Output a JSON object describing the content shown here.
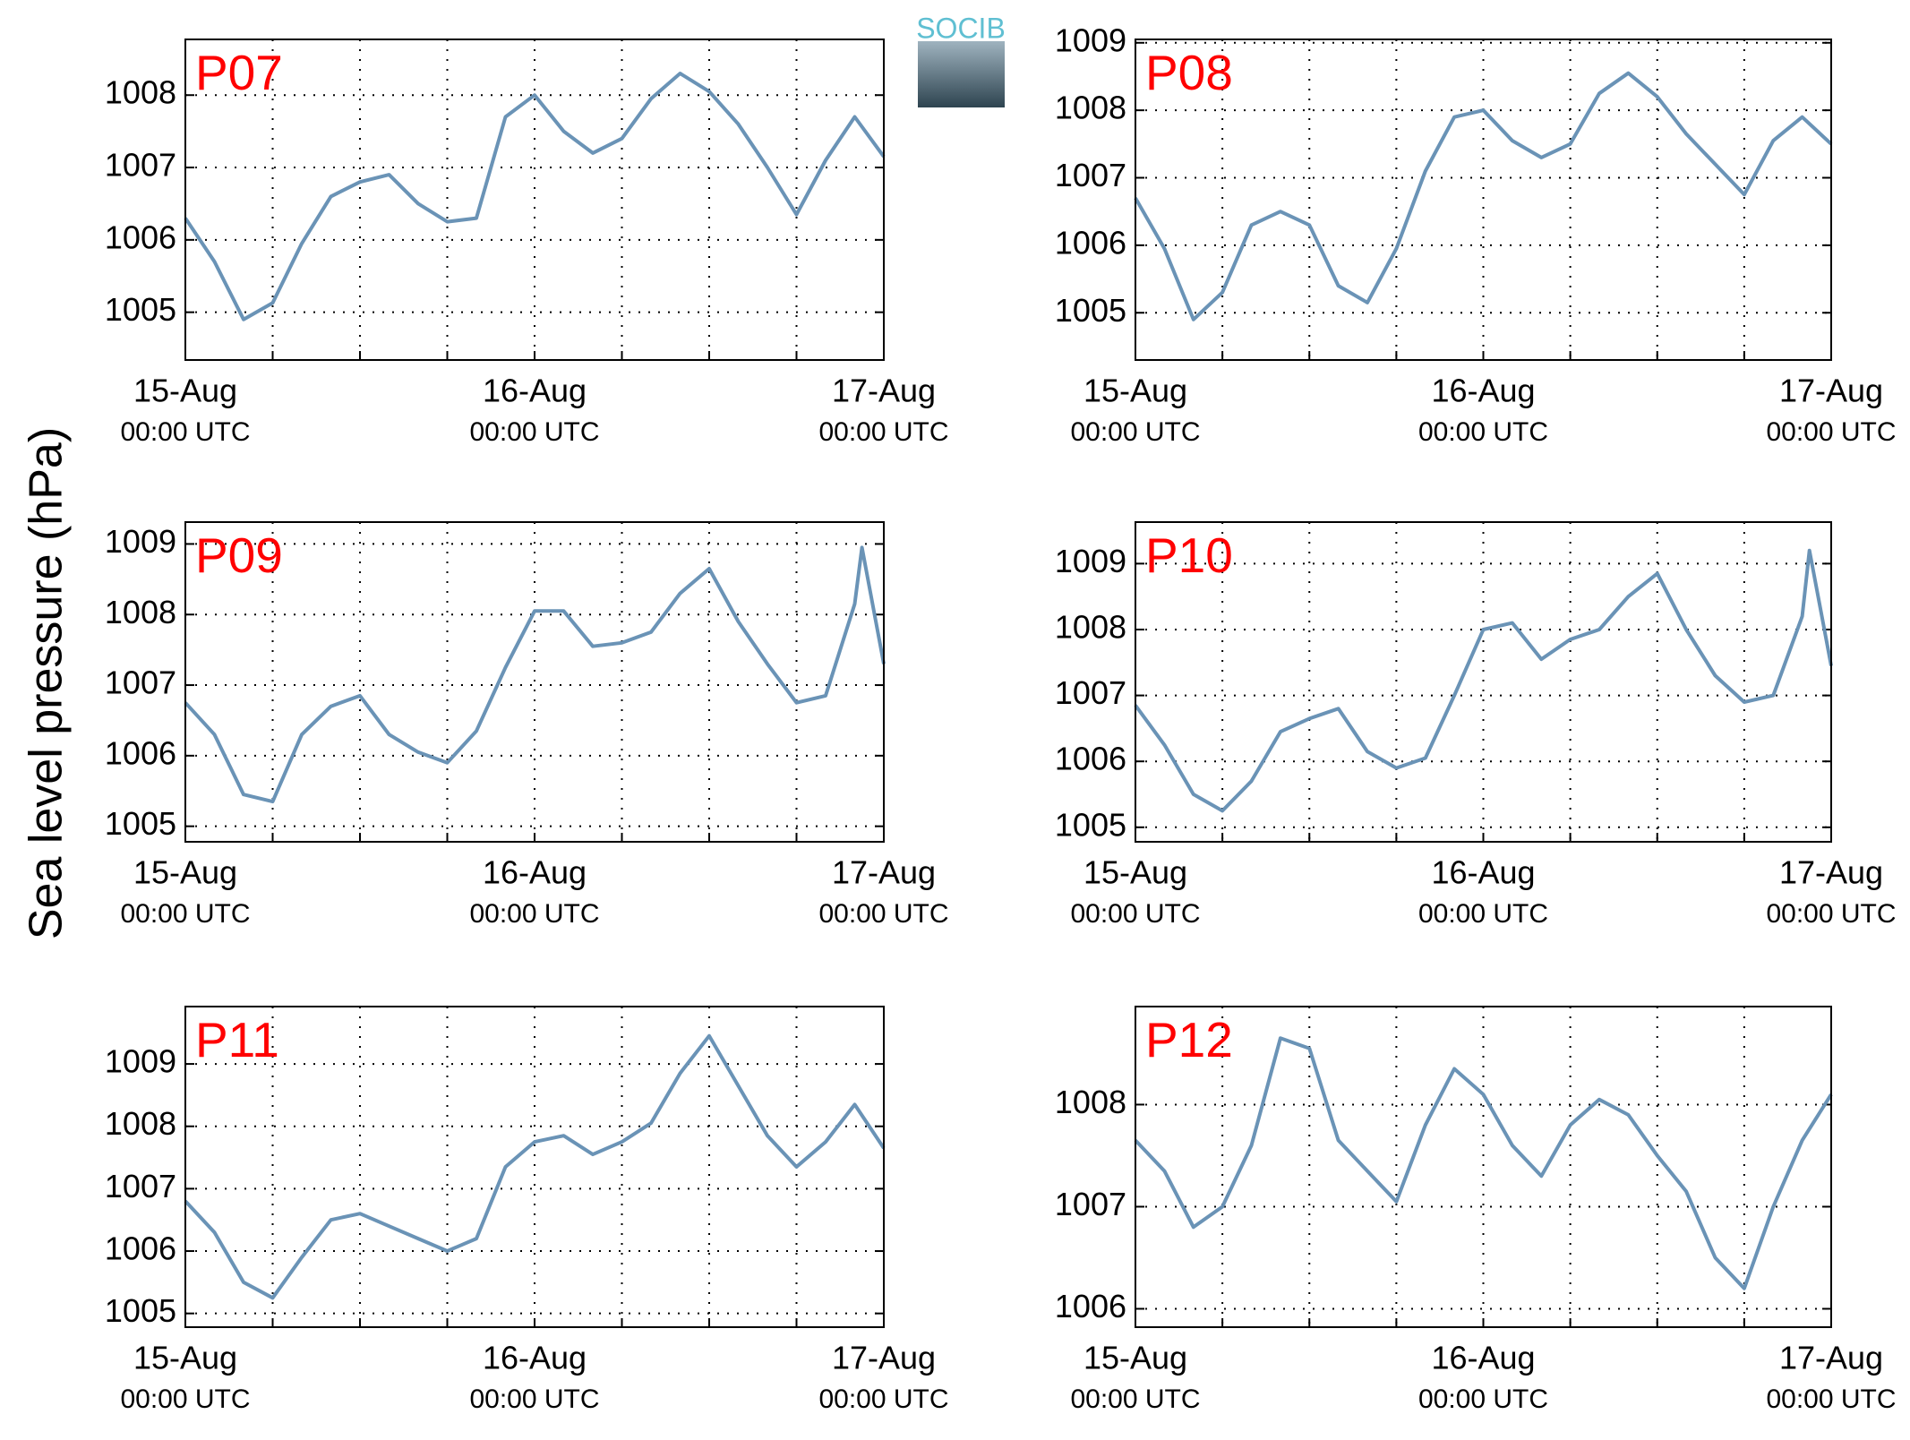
{
  "ylabel": "Sea level pressure (hPa)",
  "logo": "SOCIB",
  "chart_data": [
    {
      "type": "line",
      "title": "P07",
      "color": "#6a93b6",
      "grid": true,
      "x": [
        0,
        2,
        4,
        6,
        8,
        10,
        12,
        14,
        16,
        18,
        20,
        22,
        24,
        26,
        28,
        30,
        32,
        34,
        36,
        38,
        40,
        42,
        44,
        46,
        48
      ],
      "values": [
        1006.3,
        1005.7,
        1004.9,
        1005.13,
        1005.95,
        1006.6,
        1006.8,
        1006.9,
        1006.5,
        1006.25,
        1006.3,
        1007.7,
        1008.0,
        1007.5,
        1007.2,
        1007.4,
        1007.95,
        1008.3,
        1008.05,
        1007.6,
        1007.0,
        1006.35,
        1007.1,
        1007.7,
        1007.15
      ],
      "xlim": [
        0,
        48
      ],
      "xticks": [
        {
          "value": 0,
          "label": "15-Aug",
          "sublabel": "00:00 UTC"
        },
        {
          "value": 24,
          "label": "16-Aug",
          "sublabel": "00:00 UTC"
        },
        {
          "value": 48,
          "label": "17-Aug",
          "sublabel": "00:00 UTC"
        }
      ],
      "xminorticks": [
        6,
        12,
        18,
        30,
        36,
        42
      ],
      "ylim": [
        1004.34,
        1008.77
      ],
      "yticks": [
        1005,
        1006,
        1007,
        1008
      ]
    },
    {
      "type": "line",
      "title": "P08",
      "color": "#6a93b6",
      "grid": true,
      "x": [
        0,
        2,
        4,
        6,
        8,
        10,
        12,
        14,
        16,
        18,
        20,
        22,
        24,
        26,
        28,
        30,
        32,
        34,
        36,
        38,
        40,
        42,
        44,
        46,
        48
      ],
      "values": [
        1006.7,
        1005.95,
        1004.9,
        1005.3,
        1006.3,
        1006.5,
        1006.3,
        1005.4,
        1005.15,
        1005.95,
        1007.1,
        1007.9,
        1008.0,
        1007.55,
        1007.3,
        1007.5,
        1008.25,
        1008.55,
        1008.2,
        1007.65,
        1007.2,
        1006.75,
        1007.55,
        1007.9,
        1007.5
      ],
      "xlim": [
        0,
        48
      ],
      "xticks": [
        {
          "value": 0,
          "label": "15-Aug",
          "sublabel": "00:00 UTC"
        },
        {
          "value": 24,
          "label": "16-Aug",
          "sublabel": "00:00 UTC"
        },
        {
          "value": 48,
          "label": "17-Aug",
          "sublabel": "00:00 UTC"
        }
      ],
      "xminorticks": [
        6,
        12,
        18,
        30,
        36,
        42
      ],
      "ylim": [
        1004.3,
        1009.05
      ],
      "yticks": [
        1005,
        1006,
        1007,
        1008,
        1009
      ]
    },
    {
      "type": "line",
      "title": "P09",
      "color": "#6a93b6",
      "grid": true,
      "x": [
        0,
        2,
        4,
        6,
        8,
        10,
        12,
        14,
        16,
        18,
        20,
        22,
        24,
        26,
        28,
        30,
        32,
        34,
        36,
        38,
        40,
        42,
        44,
        46,
        46.5,
        48
      ],
      "values": [
        1006.75,
        1006.3,
        1005.45,
        1005.35,
        1006.3,
        1006.7,
        1006.85,
        1006.3,
        1006.05,
        1005.9,
        1006.35,
        1007.25,
        1008.05,
        1008.05,
        1007.55,
        1007.6,
        1007.75,
        1008.3,
        1008.65,
        1007.9,
        1007.3,
        1006.75,
        1006.85,
        1008.15,
        1008.95,
        1007.3
      ],
      "xlim": [
        0,
        48
      ],
      "xticks": [
        {
          "value": 0,
          "label": "15-Aug",
          "sublabel": "00:00 UTC"
        },
        {
          "value": 24,
          "label": "16-Aug",
          "sublabel": "00:00 UTC"
        },
        {
          "value": 48,
          "label": "17-Aug",
          "sublabel": "00:00 UTC"
        }
      ],
      "xminorticks": [
        6,
        12,
        18,
        30,
        36,
        42
      ],
      "ylim": [
        1004.78,
        1009.31
      ],
      "yticks": [
        1005,
        1006,
        1007,
        1008,
        1009
      ]
    },
    {
      "type": "line",
      "title": "P10",
      "color": "#6a93b6",
      "grid": true,
      "x": [
        0,
        2,
        4,
        6,
        8,
        10,
        12,
        14,
        16,
        18,
        20,
        22,
        24,
        26,
        28,
        30,
        32,
        34,
        36,
        38,
        40,
        42,
        44,
        46,
        46.5,
        48
      ],
      "values": [
        1006.85,
        1006.25,
        1005.5,
        1005.25,
        1005.7,
        1006.45,
        1006.65,
        1006.8,
        1006.15,
        1005.9,
        1006.05,
        1007.0,
        1008.0,
        1008.1,
        1007.55,
        1007.85,
        1008.0,
        1008.5,
        1008.85,
        1008.0,
        1007.3,
        1006.9,
        1007.0,
        1008.2,
        1009.2,
        1007.45
      ],
      "xlim": [
        0,
        48
      ],
      "xticks": [
        {
          "value": 0,
          "label": "15-Aug",
          "sublabel": "00:00 UTC"
        },
        {
          "value": 24,
          "label": "16-Aug",
          "sublabel": "00:00 UTC"
        },
        {
          "value": 48,
          "label": "17-Aug",
          "sublabel": "00:00 UTC"
        }
      ],
      "xminorticks": [
        6,
        12,
        18,
        30,
        36,
        42
      ],
      "ylim": [
        1004.78,
        1009.63
      ],
      "yticks": [
        1005,
        1006,
        1007,
        1008,
        1009
      ]
    },
    {
      "type": "line",
      "title": "P11",
      "color": "#6a93b6",
      "grid": true,
      "x": [
        0,
        2,
        4,
        6,
        8,
        10,
        12,
        14,
        16,
        18,
        20,
        22,
        24,
        26,
        28,
        30,
        32,
        34,
        36,
        38,
        40,
        42,
        44,
        46,
        48
      ],
      "values": [
        1006.8,
        1006.3,
        1005.5,
        1005.25,
        1005.9,
        1006.5,
        1006.6,
        1006.4,
        1006.2,
        1006.0,
        1006.2,
        1007.35,
        1007.75,
        1007.85,
        1007.55,
        1007.75,
        1008.05,
        1008.85,
        1009.45,
        1008.65,
        1007.85,
        1007.35,
        1007.75,
        1008.35,
        1007.65
      ],
      "xlim": [
        0,
        48
      ],
      "xticks": [
        {
          "value": 0,
          "label": "15-Aug",
          "sublabel": "00:00 UTC"
        },
        {
          "value": 24,
          "label": "16-Aug",
          "sublabel": "00:00 UTC"
        },
        {
          "value": 48,
          "label": "17-Aug",
          "sublabel": "00:00 UTC"
        }
      ],
      "xminorticks": [
        6,
        12,
        18,
        30,
        36,
        42
      ],
      "ylim": [
        1004.78,
        1009.92
      ],
      "yticks": [
        1005,
        1006,
        1007,
        1008,
        1009
      ]
    },
    {
      "type": "line",
      "title": "P12",
      "color": "#6a93b6",
      "grid": true,
      "x": [
        0,
        2,
        4,
        6,
        8,
        10,
        12,
        14,
        16,
        18,
        20,
        22,
        24,
        26,
        28,
        30,
        32,
        34,
        36,
        38,
        40,
        42,
        44,
        46,
        48
      ],
      "values": [
        1007.65,
        1007.35,
        1006.8,
        1007.0,
        1007.6,
        1008.65,
        1008.55,
        1007.65,
        1007.35,
        1007.05,
        1007.8,
        1008.35,
        1008.1,
        1007.6,
        1007.3,
        1007.8,
        1008.05,
        1007.9,
        1007.5,
        1007.15,
        1006.5,
        1006.2,
        1007.0,
        1007.65,
        1008.1
      ],
      "xlim": [
        0,
        48
      ],
      "xticks": [
        {
          "value": 0,
          "label": "15-Aug",
          "sublabel": "00:00 UTC"
        },
        {
          "value": 24,
          "label": "16-Aug",
          "sublabel": "00:00 UTC"
        },
        {
          "value": 48,
          "label": "17-Aug",
          "sublabel": "00:00 UTC"
        }
      ],
      "xminorticks": [
        6,
        12,
        18,
        30,
        36,
        42
      ],
      "ylim": [
        1005.82,
        1008.96
      ],
      "yticks": [
        1006,
        1007,
        1008
      ]
    }
  ]
}
